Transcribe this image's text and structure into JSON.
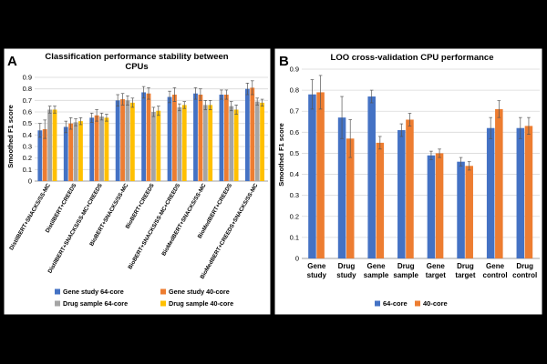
{
  "colors": {
    "blue": "#4472C4",
    "orange": "#ED7D31",
    "gray": "#A5A5A5",
    "gold": "#FFC000",
    "grid": "#D9D9D9",
    "axis": "#000000",
    "frame": "#000000"
  },
  "chart_data": [
    {
      "type": "bar",
      "panel_label": "A",
      "title": "Classification performance stability between CPUs",
      "title_line1": "Classification performance stability between",
      "title_line2": "CPUs",
      "xlabel": "",
      "ylabel": "Smoothed F1 score",
      "ylim": [
        0,
        0.9
      ],
      "yticks": [
        "0",
        "0.1",
        "0.2",
        "0.3",
        "0.4",
        "0.5",
        "0.6",
        "0.7",
        "0.8",
        "0.9"
      ],
      "grid": true,
      "legend_position": "bottom",
      "categories": [
        "DistilBERT+SNACKS/SS-MC",
        "DistilBERT+CREEDS",
        "DistilBERT+SNACKS/SS-MC+CREEDS",
        "BioBERT+SNACKS/SS-MC",
        "BioBERT+CREEDS",
        "BioBERT+SNACKS/SS-MC+CREEDS",
        "BioMedBERT+SNACKS/SS-MC",
        "BioMedBERT+CREEDS",
        "BioMedBERT+CREEDS+SNACKS/SS-MC"
      ],
      "series": [
        {
          "name": "Gene study 64-core",
          "color_key": "blue",
          "values": [
            0.44,
            0.47,
            0.55,
            0.7,
            0.77,
            0.73,
            0.76,
            0.75,
            0.8
          ],
          "errors": [
            0.06,
            0.05,
            0.04,
            0.05,
            0.05,
            0.05,
            0.05,
            0.04,
            0.05
          ]
        },
        {
          "name": "Gene study 40-core",
          "color_key": "orange",
          "values": [
            0.45,
            0.5,
            0.57,
            0.71,
            0.76,
            0.75,
            0.75,
            0.75,
            0.81
          ],
          "errors": [
            0.08,
            0.05,
            0.05,
            0.05,
            0.05,
            0.06,
            0.05,
            0.04,
            0.06
          ]
        },
        {
          "name": "Drug sample 64-core",
          "color_key": "gray",
          "values": [
            0.62,
            0.51,
            0.56,
            0.7,
            0.6,
            0.64,
            0.66,
            0.65,
            0.69
          ],
          "errors": [
            0.03,
            0.03,
            0.03,
            0.04,
            0.04,
            0.03,
            0.04,
            0.04,
            0.03
          ]
        },
        {
          "name": "Drug sample 40-core",
          "color_key": "gold",
          "values": [
            0.62,
            0.52,
            0.55,
            0.68,
            0.61,
            0.66,
            0.66,
            0.62,
            0.68
          ],
          "errors": [
            0.03,
            0.03,
            0.03,
            0.04,
            0.04,
            0.03,
            0.04,
            0.04,
            0.03
          ]
        }
      ]
    },
    {
      "type": "bar",
      "panel_label": "B",
      "title": "LOO cross-validation CPU performance",
      "xlabel": "",
      "ylabel": "Smoothed F1 score",
      "ylim": [
        0,
        0.9
      ],
      "yticks": [
        "0",
        "0.1",
        "0.2",
        "0.3",
        "0.4",
        "0.5",
        "0.6",
        "0.7",
        "0.8",
        "0.9"
      ],
      "grid": true,
      "legend_position": "bottom",
      "categories": [
        [
          "Gene",
          "study"
        ],
        [
          "Drug",
          "study"
        ],
        [
          "Gene",
          "sample"
        ],
        [
          "Drug",
          "sample"
        ],
        [
          "Gene",
          "target"
        ],
        [
          "Drug",
          "target"
        ],
        [
          "Gene",
          "control"
        ],
        [
          "Drug",
          "control"
        ]
      ],
      "series": [
        {
          "name": "64-core",
          "color_key": "blue",
          "values": [
            0.78,
            0.67,
            0.77,
            0.61,
            0.49,
            0.46,
            0.62,
            0.62
          ],
          "errors": [
            0.07,
            0.1,
            0.03,
            0.03,
            0.02,
            0.02,
            0.05,
            0.05
          ]
        },
        {
          "name": "40-core",
          "color_key": "orange",
          "values": [
            0.79,
            0.57,
            0.55,
            0.66,
            0.5,
            0.44,
            0.71,
            0.63
          ],
          "errors": [
            0.08,
            0.09,
            0.03,
            0.03,
            0.02,
            0.02,
            0.04,
            0.04
          ]
        }
      ]
    }
  ]
}
